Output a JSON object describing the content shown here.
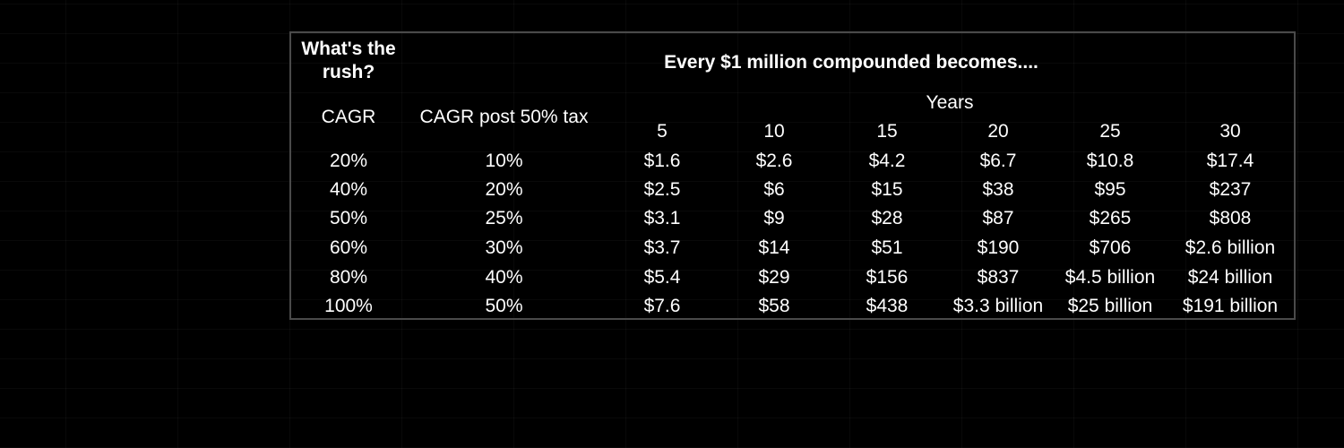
{
  "table": {
    "title_left": "What's the rush?",
    "title_main": "Every $1 million compounded becomes....",
    "years_label": "Years",
    "col_cagr": "CAGR",
    "col_post_tax": "CAGR post 50% tax",
    "years": [
      "5",
      "10",
      "15",
      "20",
      "25",
      "30"
    ],
    "rows": [
      {
        "cagr": "20%",
        "post_tax": "10%",
        "values": [
          "$1.6",
          "$2.6",
          "$4.2",
          "$6.7",
          "$10.8",
          "$17.4"
        ]
      },
      {
        "cagr": "40%",
        "post_tax": "20%",
        "values": [
          "$2.5",
          "$6",
          "$15",
          "$38",
          "$95",
          "$237"
        ]
      },
      {
        "cagr": "50%",
        "post_tax": "25%",
        "values": [
          "$3.1",
          "$9",
          "$28",
          "$87",
          "$265",
          "$808"
        ]
      },
      {
        "cagr": "60%",
        "post_tax": "30%",
        "values": [
          "$3.7",
          "$14",
          "$51",
          "$190",
          "$706",
          "$2.6 billion"
        ]
      },
      {
        "cagr": "80%",
        "post_tax": "40%",
        "values": [
          "$5.4",
          "$29",
          "$156",
          "$837",
          "$4.5 billion",
          "$24 billion"
        ]
      },
      {
        "cagr": "100%",
        "post_tax": "50%",
        "values": [
          "$7.6",
          "$58",
          "$438",
          "$3.3 billion",
          "$25 billion",
          "$191 billion"
        ]
      }
    ]
  }
}
